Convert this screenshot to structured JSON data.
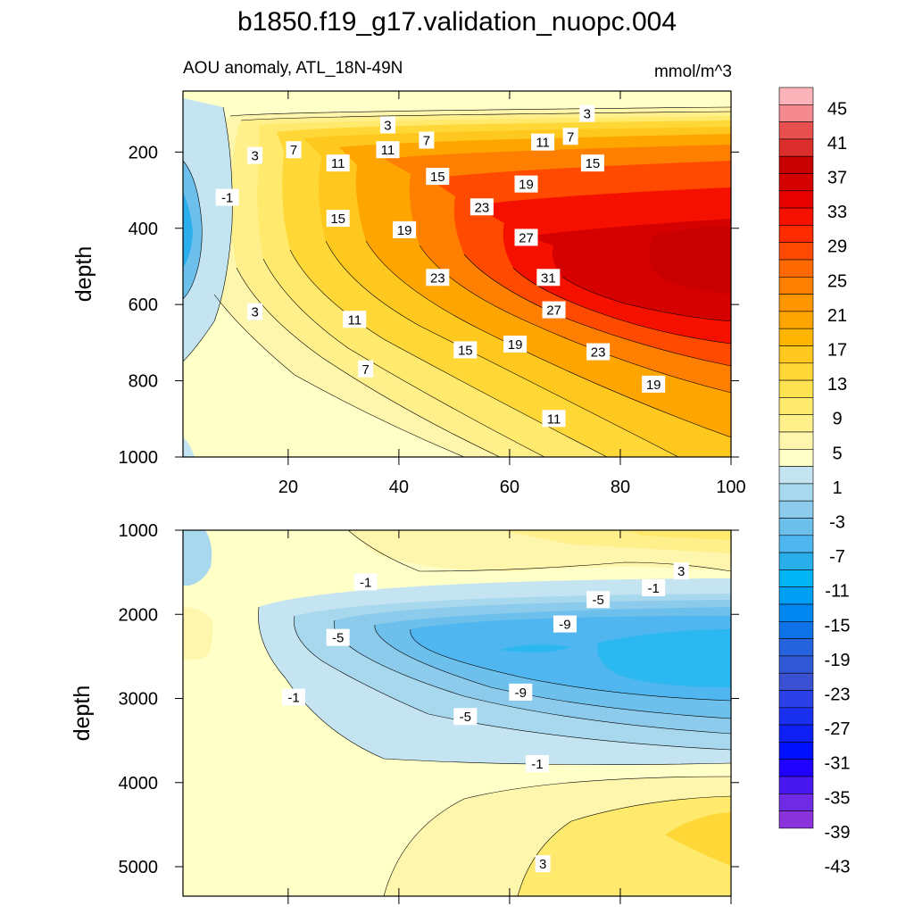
{
  "chart_data": [
    {
      "type": "heatmap",
      "panel": "upper",
      "title": "b1850.f19_g17.validation_nuopc.004",
      "subtitle_left": "AOU anomaly, ATL_18N-49N",
      "subtitle_right": "mmol/m^3",
      "xlabel": "",
      "ylabel": "depth",
      "xlim": [
        1,
        100
      ],
      "ylim": [
        1000,
        40
      ],
      "y_reversed": true,
      "xticks": [
        20,
        40,
        60,
        80,
        100
      ],
      "yticks": [
        200,
        400,
        600,
        800,
        1000
      ],
      "contour_labels": [
        {
          "text": "3",
          "x": 74,
          "y": 100
        },
        {
          "text": "3",
          "x": 38,
          "y": 130
        },
        {
          "text": "7",
          "x": 45,
          "y": 170
        },
        {
          "text": "7",
          "x": 71,
          "y": 160
        },
        {
          "text": "11",
          "x": 66,
          "y": 175
        },
        {
          "text": "11",
          "x": 38,
          "y": 195
        },
        {
          "text": "3",
          "x": 14,
          "y": 210
        },
        {
          "text": "7",
          "x": 21,
          "y": 195
        },
        {
          "text": "11",
          "x": 29,
          "y": 230
        },
        {
          "text": "15",
          "x": 47,
          "y": 265
        },
        {
          "text": "15",
          "x": 75,
          "y": 230
        },
        {
          "text": "19",
          "x": 63,
          "y": 285
        },
        {
          "text": "-1",
          "x": 9,
          "y": 320
        },
        {
          "text": "15",
          "x": 29,
          "y": 375
        },
        {
          "text": "23",
          "x": 55,
          "y": 345
        },
        {
          "text": "19",
          "x": 41,
          "y": 405
        },
        {
          "text": "27",
          "x": 63,
          "y": 425
        },
        {
          "text": "23",
          "x": 47,
          "y": 530
        },
        {
          "text": "31",
          "x": 67,
          "y": 530
        },
        {
          "text": "3",
          "x": 14,
          "y": 620
        },
        {
          "text": "27",
          "x": 68,
          "y": 615
        },
        {
          "text": "11",
          "x": 32,
          "y": 640
        },
        {
          "text": "19",
          "x": 61,
          "y": 705
        },
        {
          "text": "15",
          "x": 52,
          "y": 720
        },
        {
          "text": "23",
          "x": 76,
          "y": 725
        },
        {
          "text": "7",
          "x": 34,
          "y": 770
        },
        {
          "text": "19",
          "x": 86,
          "y": 810
        },
        {
          "text": "11",
          "x": 68,
          "y": 900
        }
      ]
    },
    {
      "type": "heatmap",
      "panel": "lower",
      "xlabel": "",
      "ylabel": "depth",
      "xlim": [
        1,
        100
      ],
      "ylim": [
        5350,
        1000
      ],
      "y_reversed": true,
      "xticks": [
        20,
        40,
        60,
        80,
        100
      ],
      "yticks": [
        1000,
        2000,
        3000,
        4000,
        5000
      ],
      "contour_labels": [
        {
          "text": "3",
          "x": 91,
          "y": 1490
        },
        {
          "text": "-1",
          "x": 34,
          "y": 1620
        },
        {
          "text": "-1",
          "x": 86,
          "y": 1690
        },
        {
          "text": "-5",
          "x": 76,
          "y": 1830
        },
        {
          "text": "-9",
          "x": 70,
          "y": 2120
        },
        {
          "text": "-5",
          "x": 29,
          "y": 2280
        },
        {
          "text": "-9",
          "x": 62,
          "y": 2930
        },
        {
          "text": "-1",
          "x": 21,
          "y": 2990
        },
        {
          "text": "-5",
          "x": 52,
          "y": 3220
        },
        {
          "text": "-1",
          "x": 65,
          "y": 3780
        },
        {
          "text": "3",
          "x": 66,
          "y": 4970
        }
      ]
    }
  ],
  "colorbar": {
    "levels": [
      "45",
      "41",
      "37",
      "33",
      "29",
      "25",
      "21",
      "17",
      "13",
      "9",
      "5",
      "1",
      "-3",
      "-7",
      "-11",
      "-15",
      "-19",
      "-23",
      "-27",
      "-31",
      "-35",
      "-39",
      "-43"
    ],
    "colors": [
      "#fbb4b9",
      "#f48a90",
      "#e85050",
      "#dd2e2e",
      "#c80000",
      "#d50000",
      "#e60000",
      "#f61000",
      "#ff2a00",
      "#ff4a00",
      "#ff6a00",
      "#ff8000",
      "#ff9600",
      "#ffa500",
      "#ffb400",
      "#ffc81e",
      "#ffd837",
      "#ffe24f",
      "#ffea6e",
      "#fff08c",
      "#fff6ad",
      "#ffffc8",
      "#c4e4f2",
      "#a8d8ee",
      "#8ccbeb",
      "#6ec0ec",
      "#4fb6ef",
      "#2bafec",
      "#00b5f5",
      "#009ef5",
      "#0087f0",
      "#0f72e6",
      "#2563dd",
      "#3058d6",
      "#3a50d2",
      "#2a40e6",
      "#1a30f0",
      "#1020f5",
      "#0010ff",
      "#2000ff",
      "#4818f0",
      "#6e2ae4",
      "#8a33dc"
    ]
  },
  "palette": {
    "deep_red": "#c80000",
    "red": "#ff1e00",
    "orange": "#ff8c00",
    "yellow": "#ffd837",
    "pale_yellow": "#ffffc8",
    "light_blue": "#c4e4f2",
    "mid_blue": "#6ec0ec",
    "blue": "#2bb8f0"
  }
}
